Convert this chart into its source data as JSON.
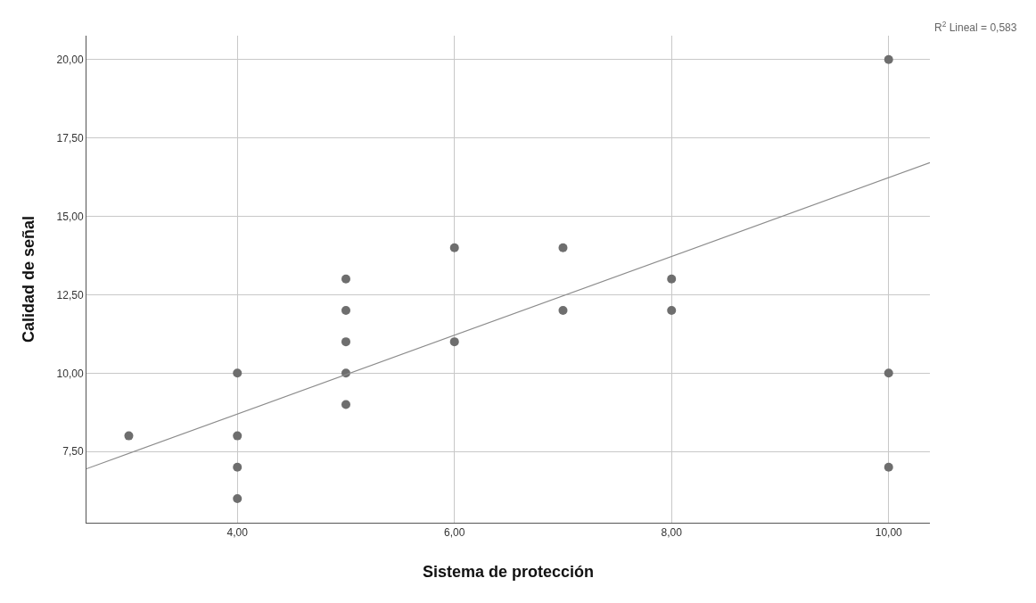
{
  "chart_data": {
    "type": "scatter",
    "xlabel": "Sistema de protección",
    "ylabel": "Calidad de señal",
    "annotations": [
      "R$^{2}$ Lineal = 0,583"
    ],
    "xlim": [
      2.61,
      10.38
    ],
    "xticks": [
      {
        "value": 4,
        "label": "4,00"
      },
      {
        "value": 6,
        "label": "6,00"
      },
      {
        "value": 8,
        "label": "8,00"
      },
      {
        "value": 10,
        "label": "10,00"
      }
    ],
    "ylim": [
      5.23,
      20.76
    ],
    "yticks": [
      {
        "value": 7.5,
        "label": "7,50"
      },
      {
        "value": 10,
        "label": "10,00"
      },
      {
        "value": 12.5,
        "label": "12,50"
      },
      {
        "value": 15,
        "label": "15,00"
      },
      {
        "value": 17.5,
        "label": "17,50"
      },
      {
        "value": 20,
        "label": "20,00"
      }
    ],
    "grid": true,
    "series": [
      {
        "marker": "circle",
        "color": "#6e6e6e",
        "x": [
          3,
          4,
          4,
          4,
          4,
          5,
          5,
          5,
          5,
          5,
          6,
          6,
          7,
          7,
          8,
          8,
          10,
          10,
          10
        ],
        "values": [
          8,
          10,
          8,
          7,
          6,
          13,
          12,
          11,
          10,
          9,
          14,
          11,
          14,
          12,
          13,
          12,
          20,
          10,
          7
        ]
      },
      {
        "type": "line",
        "color": "#8c8c8c",
        "line_style": "solid",
        "x": [
          2.61,
          10.38
        ],
        "values": [
          6.95,
          16.71
        ]
      }
    ]
  }
}
